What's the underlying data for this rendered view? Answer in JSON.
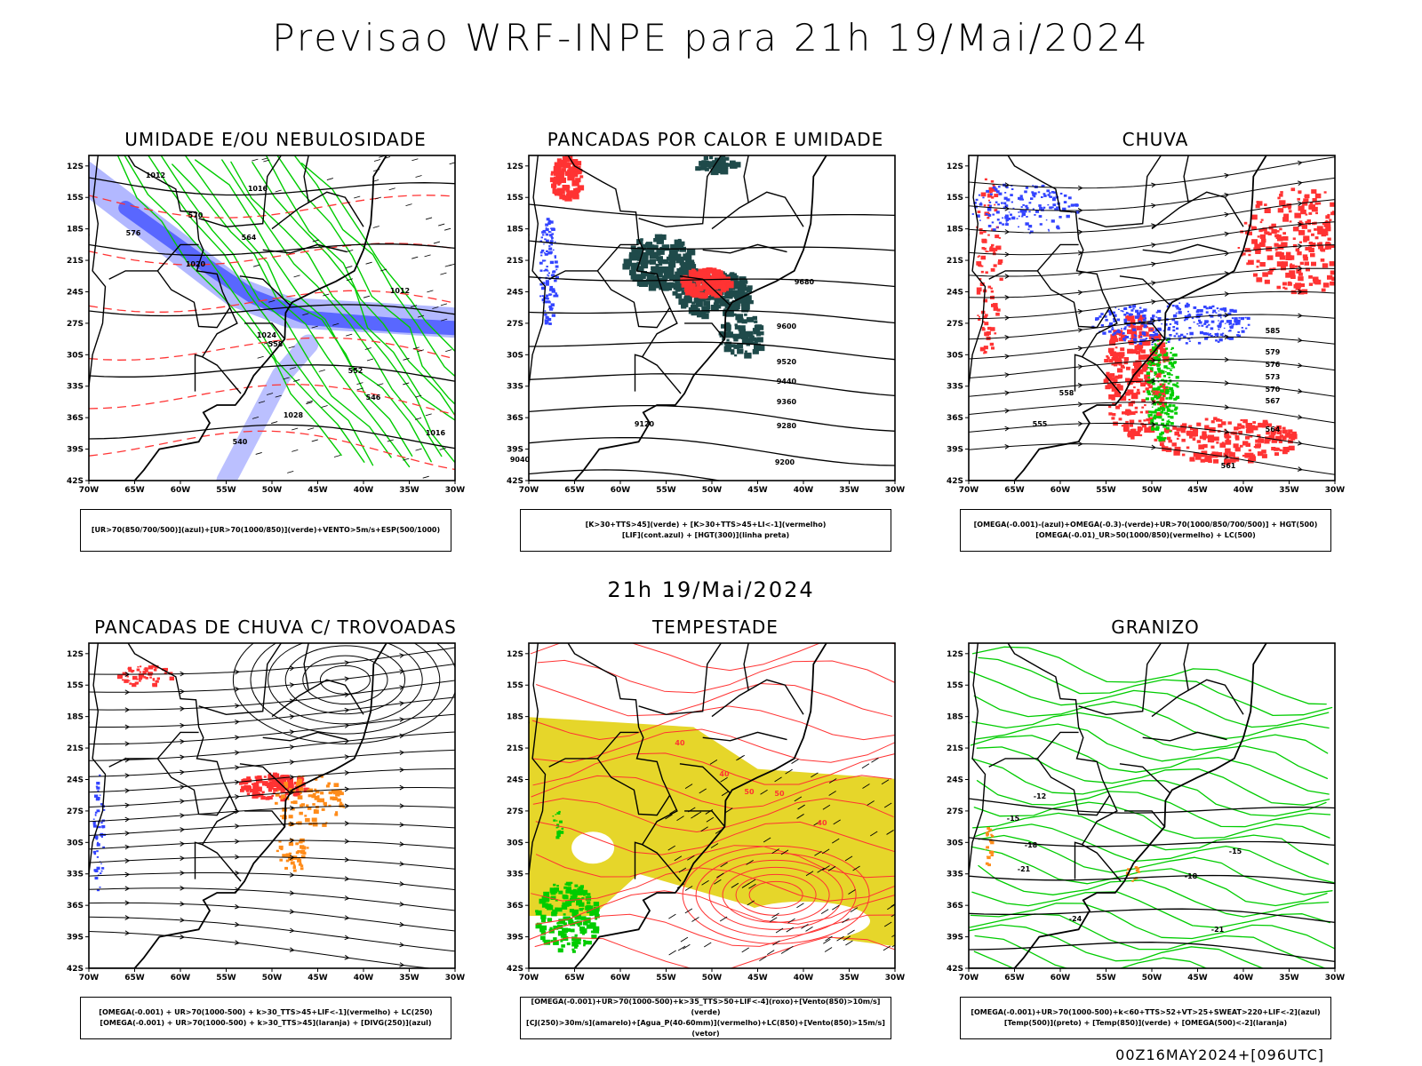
{
  "header": {
    "title": "Previsao WRF-INPE  para 21h 19/Mai/2024"
  },
  "middle_label": "21h 19/Mai/2024",
  "footer": "00Z16MAY2024+[096UTC]",
  "axes": {
    "lat_labels": [
      "12S",
      "15S",
      "18S",
      "21S",
      "24S",
      "27S",
      "30S",
      "33S",
      "36S",
      "39S",
      "42S"
    ],
    "lon_labels": [
      "70W",
      "65W",
      "60W",
      "55W",
      "50W",
      "45W",
      "40W",
      "35W",
      "30W"
    ]
  },
  "panels": [
    {
      "id": "umidade",
      "title": "UMIDADE E/OU NEBULOSIDADE",
      "legend": [
        "[UR>70(850/700/500)](azul)+[UR>70(1000/850)](verde)+VENTO>5m/s+ESP(500/1000)"
      ],
      "contour_labels": [
        "1012",
        "1016",
        "1020",
        "1024",
        "1028",
        "1016",
        "1012",
        "576",
        "570",
        "564",
        "558",
        "552",
        "546",
        "540"
      ]
    },
    {
      "id": "pancadas-calor",
      "title": "PANCADAS POR CALOR E UMIDADE",
      "legend": [
        "[K>30+TTS>45](verde) + [K>30+TTS>45+LI<-1](vermelho)",
        "[LIF](cont.azul) + [HGT(300)](linha preta)"
      ],
      "contour_labels": [
        "9680",
        "9600",
        "9520",
        "9440",
        "9360",
        "9280",
        "9200",
        "9120",
        "9040"
      ]
    },
    {
      "id": "chuva",
      "title": "CHUVA",
      "legend": [
        "[OMEGA(-0.001)-(azul)+OMEGA(-0.3)-(verde)+UR>70(1000/850/700/500)] + HGT(500)",
        "[OMEGA(-0.01)_UR>50(1000/850)(vermelho) + LC(500)"
      ],
      "contour_labels": [
        "585",
        "579",
        "576",
        "573",
        "570",
        "567",
        "564",
        "561",
        "558",
        "555"
      ]
    },
    {
      "id": "trovoadas",
      "title": "PANCADAS DE CHUVA C/ TROVOADAS",
      "legend": [
        "[OMEGA(-0.001) + UR>70(1000-500) + k>30_TTS>45+LIF<-1](vermelho) + LC(250)",
        "[OMEGA(-0.001) + UR>70(1000-500) + k>30_TTS>45](laranja) + [DIVG(250)](azul)"
      ],
      "contour_labels": []
    },
    {
      "id": "tempestade",
      "title": "TEMPESTADE",
      "legend": [
        "[OMEGA(-0.001)+UR>70(1000-500)+k>35_TTS>50+LIF<-4](roxo)+[Vento(850)>10m/s](verde)",
        "[CJ(250)>30m/s](amarelo)+[Agua_P(40-60mm)](vermelho)+LC(850)+[Vento(850)>15m/s](vetor)"
      ],
      "contour_labels": [
        "40",
        "40",
        "50",
        "50",
        "40"
      ]
    },
    {
      "id": "granizo",
      "title": "GRANIZO",
      "legend": [
        "[OMEGA(-0.001)+UR>70(1000-500)+k<60+TTS>52+VT>25+SWEAT>220+LIF<-2](azul)",
        "[Temp(500)](preto) + [Temp(850)](verde) + [OMEGA(500)<-2](laranja)"
      ],
      "contour_labels": [
        "-12",
        "-15",
        "-18",
        "-21",
        "-24",
        "-15",
        "-18",
        "-21"
      ]
    }
  ],
  "colors": {
    "green": "#00cc00",
    "red": "#ff3333",
    "blue": "#3344ff",
    "lightblue": "#aab0ff",
    "darkteal": "#1f4a4a",
    "orange": "#ff8c1a",
    "yellow": "#e6d62a"
  }
}
